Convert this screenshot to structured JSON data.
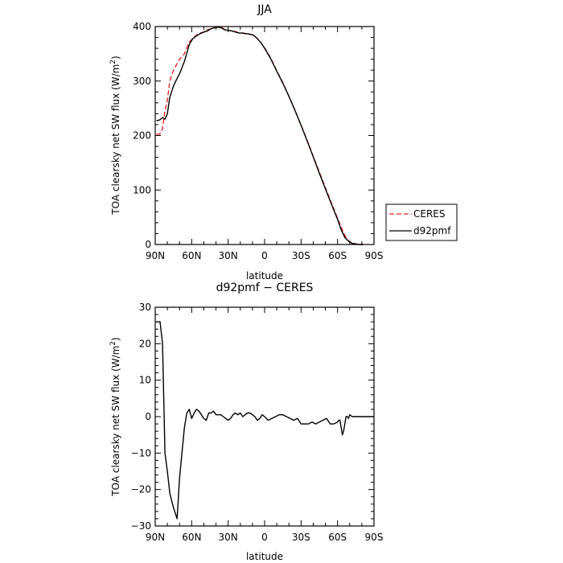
{
  "chart_data": [
    {
      "type": "line",
      "title": "JJA",
      "xlabel": "latitude",
      "ylabel": "TOA clearsky net SW flux (W/m",
      "ylabel_sup": "2",
      "ylabel_close": ")",
      "xlim": [
        90,
        -90
      ],
      "ylim": [
        0,
        400
      ],
      "xticks": [
        {
          "v": 90,
          "label": "90N"
        },
        {
          "v": 60,
          "label": "60N"
        },
        {
          "v": 30,
          "label": "30N"
        },
        {
          "v": 0,
          "label": "0"
        },
        {
          "v": -30,
          "label": "30S"
        },
        {
          "v": -60,
          "label": "60S"
        },
        {
          "v": -90,
          "label": "90S"
        }
      ],
      "yticks": [
        0,
        100,
        200,
        300,
        400
      ],
      "legend_position": "right",
      "series": [
        {
          "name": "CERES",
          "color": "#e8252a",
          "dash": "dashed",
          "x": [
            89,
            86,
            84,
            82,
            80,
            78,
            75,
            72,
            70,
            66,
            62,
            59,
            56,
            53,
            50,
            47,
            44,
            41,
            38,
            35,
            33,
            30,
            27,
            24,
            21,
            18,
            15,
            12,
            9,
            6,
            3,
            0,
            -5,
            -10,
            -15,
            -20,
            -25,
            -30,
            -35,
            -40,
            -45,
            -50,
            -55,
            -60,
            -63,
            -66,
            -69,
            -72,
            -75,
            -78,
            -81
          ],
          "y": [
            202,
            203,
            213,
            245,
            265,
            300,
            320,
            332,
            340,
            350,
            372,
            378,
            385,
            388,
            390,
            394,
            396,
            398,
            399,
            398,
            395,
            393,
            392,
            391,
            388,
            388,
            386,
            386,
            384,
            378,
            370,
            361,
            342,
            319,
            297,
            272,
            246,
            219,
            191,
            162,
            133,
            104,
            76,
            48,
            32,
            17,
            7,
            3,
            1,
            0,
            0
          ]
        },
        {
          "name": "d92pmf",
          "color": "#000000",
          "dash": "solid",
          "x": [
            89,
            86,
            84,
            82,
            80,
            78,
            75,
            72,
            70,
            66,
            62,
            59,
            56,
            53,
            50,
            47,
            44,
            41,
            38,
            35,
            33,
            30,
            27,
            24,
            21,
            18,
            15,
            12,
            9,
            6,
            3,
            0,
            -5,
            -10,
            -15,
            -20,
            -25,
            -30,
            -35,
            -40,
            -45,
            -50,
            -55,
            -60,
            -63,
            -66,
            -69,
            -72,
            -75,
            -78,
            -81
          ],
          "y": [
            227,
            229,
            233,
            230,
            240,
            270,
            291,
            305,
            313,
            336,
            367,
            378,
            383,
            387,
            390,
            392,
            396,
            398,
            399,
            397,
            394,
            393,
            392,
            390,
            388,
            388,
            387,
            386,
            384,
            378,
            370,
            360,
            341,
            318,
            296,
            272,
            246,
            219,
            190,
            161,
            131,
            102,
            74,
            46,
            27,
            13,
            6,
            2,
            1,
            0,
            0
          ]
        }
      ]
    },
    {
      "type": "line",
      "title": "d92pmf − CERES",
      "xlabel": "latitude",
      "ylabel": "TOA clearsky net SW flux (W/m",
      "ylabel_sup": "2",
      "ylabel_close": ")",
      "xlim": [
        90,
        -90
      ],
      "ylim": [
        -30,
        30
      ],
      "xticks": [
        {
          "v": 90,
          "label": "90N"
        },
        {
          "v": 60,
          "label": "60N"
        },
        {
          "v": 30,
          "label": "30N"
        },
        {
          "v": 0,
          "label": "0"
        },
        {
          "v": -30,
          "label": "30S"
        },
        {
          "v": -60,
          "label": "60S"
        },
        {
          "v": -90,
          "label": "90S"
        }
      ],
      "yticks": [
        30,
        20,
        10,
        0,
        -10,
        -20,
        -30
      ],
      "series": [
        {
          "name": "",
          "color": "#000000",
          "dash": "solid",
          "x": [
            89,
            86,
            84,
            82,
            80,
            78,
            75,
            72,
            70,
            68,
            66,
            64,
            62,
            60,
            58,
            56,
            54,
            52,
            50,
            48,
            46,
            44,
            42,
            40,
            38,
            36,
            34,
            32,
            30,
            28,
            26,
            24,
            22,
            20,
            18,
            16,
            14,
            12,
            10,
            8,
            6,
            4,
            2,
            0,
            -3,
            -6,
            -9,
            -12,
            -15,
            -18,
            -21,
            -24,
            -27,
            -30,
            -33,
            -36,
            -39,
            -42,
            -45,
            -48,
            -51,
            -54,
            -57,
            -60,
            -61,
            -62,
            -63,
            -64,
            -65,
            -66,
            -67,
            -68,
            -69,
            -70,
            -72,
            -75,
            -78,
            -81,
            -84,
            -87,
            -90
          ],
          "y": [
            26,
            26,
            20,
            -10,
            -15,
            -21,
            -25,
            -28,
            -17,
            -10,
            -3,
            1,
            2,
            -0.5,
            1,
            2,
            1.5,
            0.5,
            -0.5,
            -1,
            1,
            1,
            1.5,
            0.5,
            0.5,
            0.5,
            0,
            -0.5,
            -1,
            -0.5,
            0.5,
            1,
            0.5,
            1,
            0,
            0.5,
            1,
            1,
            0.5,
            0,
            -1,
            -0.5,
            0.5,
            0,
            -1,
            -0.5,
            0,
            0.5,
            0.5,
            0,
            -0.5,
            -1,
            -0.5,
            -2,
            -2,
            -2,
            -1.5,
            -2,
            -1.5,
            -1,
            -0.5,
            -2,
            -2,
            -1.5,
            -1,
            -1,
            -3,
            -5,
            -4,
            -2,
            0,
            0,
            -0.5,
            0.5,
            0,
            0,
            0,
            0,
            0,
            0,
            0
          ]
        }
      ]
    }
  ]
}
